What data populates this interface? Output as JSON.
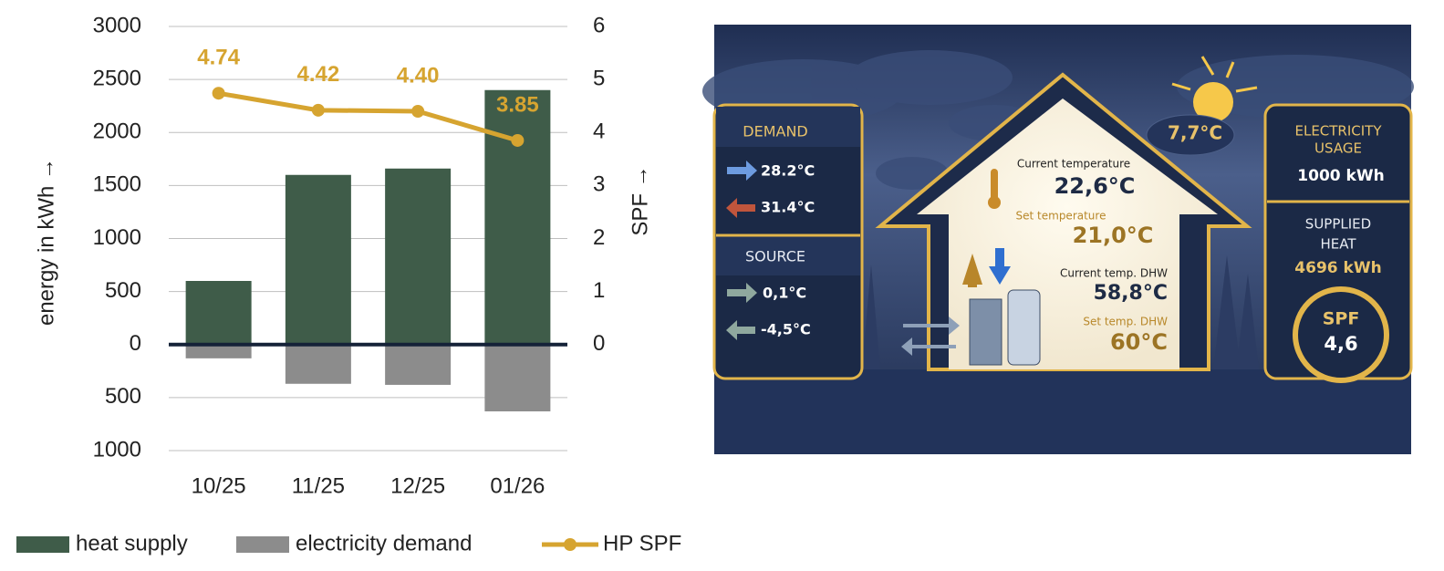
{
  "chart_data": {
    "type": "bar",
    "categories": [
      "10/25",
      "11/25",
      "12/25",
      "01/26"
    ],
    "series": [
      {
        "name": "heat supply",
        "color": "#3f5c49",
        "values": [
          600,
          1600,
          1660,
          2400
        ]
      },
      {
        "name": "electricity demand",
        "color": "#8c8c8c",
        "values": [
          -130,
          -370,
          -380,
          -630
        ]
      },
      {
        "name": "HP SPF",
        "type": "line",
        "axis": "y2",
        "color": "#d6a430",
        "values": [
          4.74,
          4.42,
          4.4,
          3.85
        ],
        "value_labels": [
          "4.74",
          "4.42",
          "4.40",
          "3.85"
        ]
      }
    ],
    "ylabel": "energy in kWh →",
    "y2label": "SPF →",
    "ylim": [
      -1000,
      3000
    ],
    "yticks": [
      {
        "value": -1000,
        "label": "1000"
      },
      {
        "value": -500,
        "label": "500"
      },
      0,
      500,
      1000,
      1500,
      2000,
      2500,
      3000
    ],
    "y2lim": [
      -2,
      6
    ],
    "y2ticks": [
      0,
      1,
      2,
      3,
      4,
      5,
      6
    ],
    "grid": true,
    "legend": "bottom"
  },
  "dashboard": {
    "demand": {
      "title": "DEMAND",
      "supply": "28.2°C",
      "return": "31.4°C"
    },
    "source": {
      "title": "SOURCE",
      "in": "0,1°C",
      "out": "-4,5°C"
    },
    "outdoor": "7,7°C",
    "current_temperature": {
      "label": "Current temperature",
      "value": "22,6°C"
    },
    "set_temperature": {
      "label": "Set temperature",
      "value": "21,0°C"
    },
    "current_dhw": {
      "label": "Current temp. DHW",
      "value": "58,8°C"
    },
    "set_dhw": {
      "label": "Set temp. DHW",
      "value": "60°C"
    },
    "electricity": {
      "title": [
        "ELECTRICITY",
        "USAGE"
      ],
      "value": "1000 kWh"
    },
    "heat": {
      "title": [
        "SUPPLIED",
        "HEAT"
      ],
      "value": "4696 kWh"
    },
    "spf": {
      "title": "SPF",
      "value": "4,6"
    }
  }
}
